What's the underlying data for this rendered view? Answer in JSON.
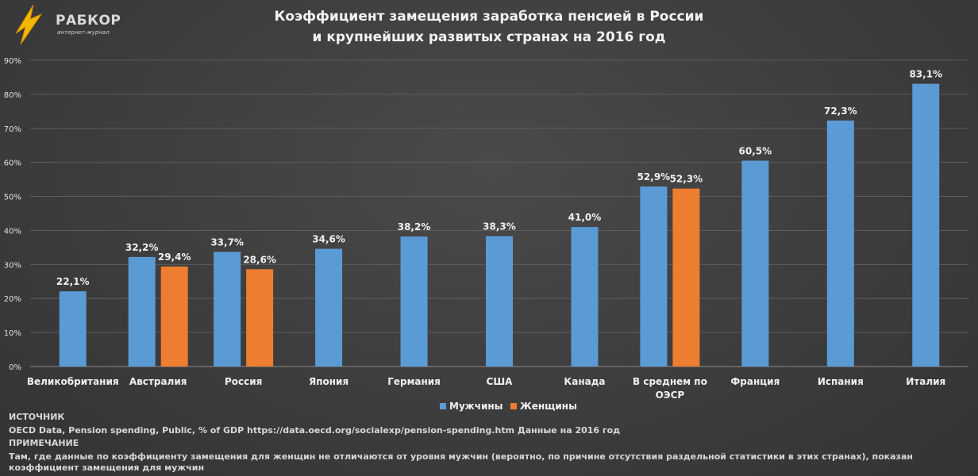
{
  "logo": {
    "name": "РАБКОР",
    "subtitle": "интернет-журнал",
    "icon": "lightning-bolt-icon"
  },
  "title_line1": "Коэффициент замещения заработка пенсией в России",
  "title_line2": "и крупнейших развитых странах на 2016 год",
  "colors": {
    "men": "#5b9bd5",
    "women": "#ed7d31"
  },
  "chart_data": {
    "type": "bar",
    "categories": [
      "Великобритания",
      "Австралия",
      "Россия",
      "Япония",
      "Германия",
      "США",
      "Канада",
      "В среднем по ОЭСР",
      "Франция",
      "Испания",
      "Италия"
    ],
    "series": [
      {
        "name": "Мужчины",
        "values": [
          22.1,
          32.2,
          33.7,
          34.6,
          38.2,
          38.3,
          41.0,
          52.9,
          60.5,
          72.3,
          83.1
        ],
        "labels": [
          "22,1%",
          "32,2%",
          "33,7%",
          "34,6%",
          "38,2%",
          "38,3%",
          "41,0%",
          "52,9%",
          "60,5%",
          "72,3%",
          "83,1%"
        ]
      },
      {
        "name": "Женщины",
        "values": [
          null,
          29.4,
          28.6,
          null,
          null,
          null,
          null,
          52.3,
          null,
          null,
          null
        ],
        "labels": [
          null,
          "29,4%",
          "28,6%",
          null,
          null,
          null,
          null,
          "52,3%",
          null,
          null,
          null
        ]
      }
    ],
    "yticks": [
      "0%",
      "10%",
      "20%",
      "30%",
      "40%",
      "50%",
      "60%",
      "70%",
      "80%",
      "90%"
    ],
    "ylim": [
      0,
      90
    ],
    "grid": true,
    "legend": "bottom-center"
  },
  "notes": {
    "source_heading": "ИСТОЧНИК",
    "source_text": "OECD Data, Pension spending, Public, % of GDP https://data.oecd.org/socialexp/pension-spending.htm Данные на 2016 год",
    "note_heading": "ПРИМЕЧАНИЕ",
    "note_text": "Там, где данные по коэффициенту замещения для женщин не отличаются от уровня мужчин (вероятно, по причине отсутствия раздельной статистики в этих странах), показан коэффициент замещения для мужчин"
  }
}
